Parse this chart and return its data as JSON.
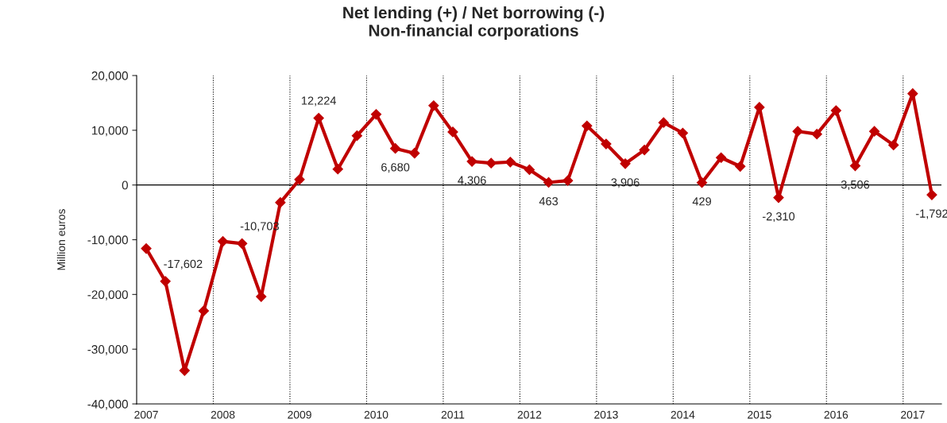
{
  "chart_data": {
    "type": "line",
    "title": "Net lending (+) / Net borrowing (-)\nNon-financial corporations",
    "ylabel": "Million euros",
    "x": [
      2007.125,
      2007.375,
      2007.625,
      2007.875,
      2008.125,
      2008.375,
      2008.625,
      2008.875,
      2009.125,
      2009.375,
      2009.625,
      2009.875,
      2010.125,
      2010.375,
      2010.625,
      2010.875,
      2011.125,
      2011.375,
      2011.625,
      2011.875,
      2012.125,
      2012.375,
      2012.625,
      2012.875,
      2013.125,
      2013.375,
      2013.625,
      2013.875,
      2014.125,
      2014.375,
      2014.625,
      2014.875,
      2015.125,
      2015.375,
      2015.625,
      2015.875,
      2016.125,
      2016.375,
      2016.625,
      2016.875,
      2017.125,
      2017.375
    ],
    "series": [
      {
        "color": "#c00000",
        "values": [
          -11600,
          -17602,
          -33900,
          -23000,
          -10300,
          -10703,
          -20400,
          -3200,
          1000,
          12224,
          2900,
          9000,
          12900,
          6680,
          5800,
          14500,
          9700,
          4306,
          4000,
          4200,
          2800,
          463,
          800,
          10800,
          7500,
          3906,
          6400,
          11400,
          9500,
          429,
          5000,
          3400,
          14200,
          -2310,
          9800,
          9300,
          13600,
          3506,
          9800,
          7300,
          16700,
          -1792
        ],
        "value_labels": [
          null,
          "-17,602",
          null,
          null,
          null,
          "-10,703",
          null,
          null,
          null,
          "12,224",
          null,
          null,
          null,
          "6,680",
          null,
          null,
          null,
          "4,306",
          null,
          null,
          null,
          "463",
          null,
          null,
          null,
          "3,906",
          null,
          null,
          null,
          "429",
          null,
          null,
          null,
          "-2,310",
          null,
          null,
          null,
          "3,506",
          null,
          null,
          null,
          "-1,792"
        ]
      }
    ],
    "xlim": [
      2007,
      2017.5
    ],
    "xticks": [
      {
        "value": 2007.125,
        "label": "2007"
      },
      {
        "value": 2008.125,
        "label": "2008"
      },
      {
        "value": 2009.125,
        "label": "2009"
      },
      {
        "value": 2010.125,
        "label": "2010"
      },
      {
        "value": 2011.125,
        "label": "2011"
      },
      {
        "value": 2012.125,
        "label": "2012"
      },
      {
        "value": 2013.125,
        "label": "2013"
      },
      {
        "value": 2014.125,
        "label": "2014"
      },
      {
        "value": 2015.125,
        "label": "2015"
      },
      {
        "value": 2016.125,
        "label": "2016"
      },
      {
        "value": 2017.125,
        "label": "2017"
      }
    ],
    "ylim": [
      -40000,
      20000
    ],
    "yticks": [
      {
        "value": -40000,
        "label": "-40,000"
      },
      {
        "value": -30000,
        "label": "-30,000"
      },
      {
        "value": -20000,
        "label": "-20,000"
      },
      {
        "value": -10000,
        "label": "-10,000"
      },
      {
        "value": 0,
        "label": "0"
      },
      {
        "value": 10000,
        "label": "10,000"
      },
      {
        "value": 20000,
        "label": "20,000"
      }
    ],
    "ref_lines": [
      {
        "axis": "y",
        "value": 0,
        "color": "#000000",
        "line_style": "solid"
      },
      {
        "axis": "x",
        "value": 2008,
        "color": "#000000",
        "line_style": "dotted"
      },
      {
        "axis": "x",
        "value": 2009,
        "color": "#000000",
        "line_style": "dotted"
      },
      {
        "axis": "x",
        "value": 2010,
        "color": "#000000",
        "line_style": "dotted"
      },
      {
        "axis": "x",
        "value": 2011,
        "color": "#000000",
        "line_style": "dotted"
      },
      {
        "axis": "x",
        "value": 2012,
        "color": "#000000",
        "line_style": "dotted"
      },
      {
        "axis": "x",
        "value": 2013,
        "color": "#000000",
        "line_style": "dotted"
      },
      {
        "axis": "x",
        "value": 2014,
        "color": "#000000",
        "line_style": "dotted"
      },
      {
        "axis": "x",
        "value": 2015,
        "color": "#000000",
        "line_style": "dotted"
      },
      {
        "axis": "x",
        "value": 2016,
        "color": "#000000",
        "line_style": "dotted"
      },
      {
        "axis": "x",
        "value": 2017,
        "color": "#000000",
        "line_style": "dotted"
      }
    ],
    "marker": "diamond",
    "line_style": "solid",
    "grid": false,
    "legend": false
  }
}
